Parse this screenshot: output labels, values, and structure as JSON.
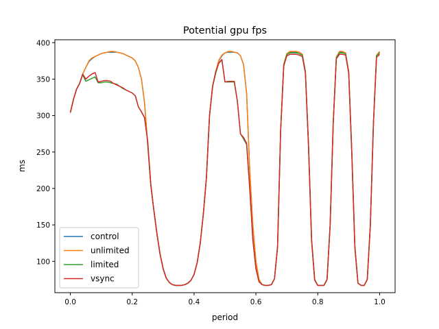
{
  "chart_data": {
    "type": "line",
    "title": "Potential gpu fps",
    "xlabel": "period",
    "ylabel": "ms",
    "xlim": [
      -0.05,
      1.05
    ],
    "ylim": [
      57,
      404
    ],
    "xticks": [
      0.0,
      0.2,
      0.4,
      0.6,
      0.8,
      1.0
    ],
    "xtick_labels": [
      "0.0",
      "0.2",
      "0.4",
      "0.6",
      "0.8",
      "1.0"
    ],
    "yticks": [
      100,
      150,
      200,
      250,
      300,
      350,
      400
    ],
    "ytick_labels": [
      "100",
      "150",
      "200",
      "250",
      "300",
      "350",
      "400"
    ],
    "grid": false,
    "legend_position": "lower-left",
    "x": [
      0.0,
      0.01,
      0.02,
      0.03,
      0.04,
      0.05,
      0.06,
      0.07,
      0.08,
      0.09,
      0.1,
      0.11,
      0.12,
      0.13,
      0.14,
      0.15,
      0.16,
      0.17,
      0.18,
      0.19,
      0.2,
      0.21,
      0.22,
      0.23,
      0.24,
      0.25,
      0.26,
      0.27,
      0.28,
      0.29,
      0.3,
      0.31,
      0.32,
      0.33,
      0.34,
      0.35,
      0.36,
      0.37,
      0.38,
      0.39,
      0.4,
      0.41,
      0.42,
      0.43,
      0.44,
      0.45,
      0.46,
      0.47,
      0.48,
      0.49,
      0.5,
      0.51,
      0.52,
      0.53,
      0.54,
      0.55,
      0.56,
      0.57,
      0.58,
      0.59,
      0.6,
      0.61,
      0.62,
      0.63,
      0.64,
      0.65,
      0.66,
      0.67,
      0.68,
      0.69,
      0.7,
      0.71,
      0.72,
      0.73,
      0.74,
      0.75,
      0.76,
      0.77,
      0.78,
      0.79,
      0.8,
      0.81,
      0.82,
      0.83,
      0.84,
      0.85,
      0.86,
      0.87,
      0.88,
      0.89,
      0.9,
      0.91,
      0.92,
      0.93,
      0.94,
      0.95,
      0.96,
      0.97,
      0.98,
      0.99,
      1.0
    ],
    "series": [
      {
        "name": "control",
        "color": "#1f77b4",
        "values": [
          304,
          322,
          336,
          344,
          357,
          366,
          374,
          378,
          381,
          383,
          385,
          386,
          387,
          387,
          387,
          387,
          386,
          385,
          383,
          381,
          379,
          375,
          366,
          350,
          317,
          260,
          205,
          170,
          138,
          110,
          90,
          77,
          71,
          68,
          67,
          67,
          67,
          68,
          70,
          74,
          82,
          98,
          125,
          165,
          215,
          300,
          340,
          360,
          375,
          382,
          386,
          387,
          387,
          387,
          386,
          382,
          370,
          330,
          225,
          150,
          100,
          75,
          68,
          67,
          67,
          68,
          76,
          120,
          280,
          370,
          384,
          387,
          387,
          387,
          387,
          384,
          360,
          260,
          130,
          75,
          67,
          67,
          67,
          75,
          150,
          290,
          380,
          387,
          387,
          385,
          360,
          250,
          120,
          70,
          67,
          67,
          75,
          150,
          290,
          382,
          387
        ]
      },
      {
        "name": "unlimited",
        "color": "#ff7f0e",
        "values": [
          304,
          322,
          336,
          344,
          357,
          366,
          375,
          379,
          381,
          383,
          385,
          386,
          387,
          388,
          388,
          387,
          386,
          385,
          383,
          381,
          379,
          375,
          366,
          350,
          318,
          262,
          206,
          170,
          138,
          110,
          90,
          77,
          71,
          68,
          67,
          67,
          67,
          68,
          70,
          74,
          82,
          98,
          125,
          165,
          215,
          300,
          340,
          360,
          376,
          383,
          386,
          388,
          388,
          387,
          386,
          382,
          370,
          330,
          225,
          150,
          100,
          75,
          68,
          67,
          67,
          68,
          76,
          120,
          280,
          370,
          385,
          388,
          388,
          388,
          387,
          384,
          360,
          260,
          130,
          75,
          67,
          67,
          67,
          75,
          150,
          290,
          380,
          388,
          388,
          386,
          360,
          250,
          120,
          70,
          67,
          67,
          75,
          150,
          290,
          383,
          388
        ]
      },
      {
        "name": "limited",
        "color": "#2ca02c",
        "values": [
          304,
          322,
          336,
          344,
          356,
          347,
          349,
          351,
          353,
          345,
          345,
          346,
          346,
          345,
          344,
          343,
          340,
          337,
          335,
          333,
          331,
          327,
          312,
          305,
          297,
          265,
          206,
          170,
          138,
          110,
          90,
          77,
          71,
          68,
          67,
          67,
          67,
          68,
          70,
          74,
          82,
          98,
          125,
          165,
          215,
          300,
          340,
          358,
          372,
          376,
          346,
          346,
          346,
          346,
          320,
          275,
          268,
          260,
          200,
          130,
          90,
          72,
          68,
          67,
          67,
          68,
          76,
          120,
          280,
          370,
          384,
          386,
          386,
          386,
          385,
          383,
          360,
          260,
          130,
          75,
          67,
          67,
          67,
          75,
          150,
          290,
          380,
          386,
          386,
          385,
          360,
          250,
          120,
          70,
          67,
          67,
          75,
          150,
          290,
          382,
          386
        ]
      },
      {
        "name": "vsync",
        "color": "#d62728",
        "values": [
          304,
          322,
          336,
          344,
          357,
          350,
          354,
          357,
          359,
          346,
          347,
          348,
          348,
          347,
          344,
          342,
          340,
          338,
          335,
          333,
          331,
          327,
          312,
          305,
          297,
          265,
          206,
          170,
          138,
          110,
          90,
          77,
          71,
          68,
          67,
          67,
          67,
          68,
          70,
          74,
          82,
          98,
          125,
          165,
          215,
          300,
          340,
          360,
          372,
          377,
          346,
          347,
          347,
          347,
          320,
          275,
          270,
          262,
          200,
          130,
          90,
          72,
          68,
          67,
          67,
          68,
          76,
          120,
          280,
          368,
          382,
          384,
          384,
          384,
          383,
          381,
          358,
          258,
          128,
          74,
          67,
          67,
          67,
          75,
          150,
          290,
          378,
          384,
          384,
          383,
          358,
          248,
          118,
          70,
          67,
          67,
          75,
          150,
          290,
          380,
          384
        ]
      }
    ]
  }
}
